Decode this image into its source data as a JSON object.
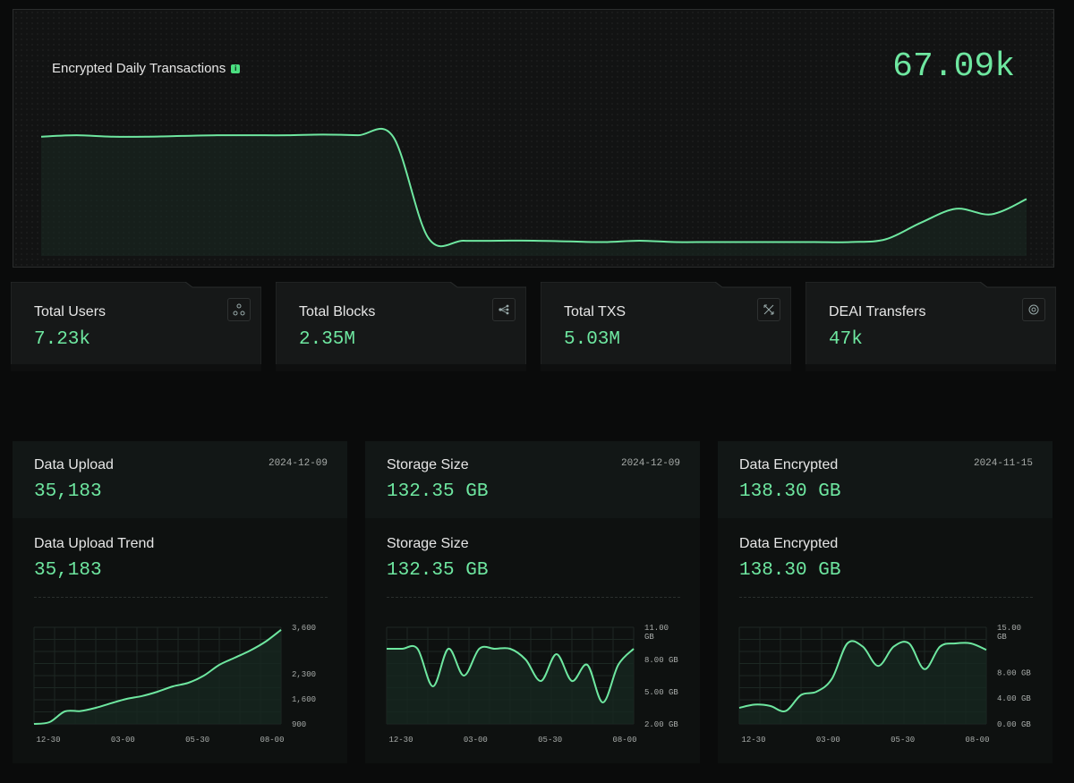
{
  "hero": {
    "title": "Encrypted Daily Transactions",
    "info_icon": "info-icon",
    "value": "67.09k",
    "chart_data": {
      "type": "area",
      "values": [
        0.86,
        0.87,
        0.86,
        0.86,
        0.865,
        0.87,
        0.87,
        0.87,
        0.875,
        0.87,
        0.86,
        0.13,
        0.11,
        0.11,
        0.11,
        0.105,
        0.1,
        0.11,
        0.1,
        0.1,
        0.1,
        0.1,
        0.1,
        0.1,
        0.12,
        0.24,
        0.34,
        0.3,
        0.41
      ],
      "accent": "#6ee7a0"
    }
  },
  "stats": [
    {
      "label": "Total Users",
      "value": "7.23k",
      "icon": "users-network-icon"
    },
    {
      "label": "Total Blocks",
      "value": "2.35M",
      "icon": "blocks-tree-icon"
    },
    {
      "label": "Total TXS",
      "value": "5.03M",
      "icon": "transactions-arrows-icon"
    },
    {
      "label": "DEAI Transfers",
      "value": "47k",
      "icon": "transfer-target-icon"
    }
  ],
  "cards": [
    {
      "label": "Data Upload",
      "date": "2024-12-09",
      "value": "35,183",
      "trend_label": "Data Upload Trend",
      "trend_value": "35,183",
      "chart_data": {
        "type": "area",
        "x_ticks": [
          "12-30",
          "03-00",
          "05-30",
          "08-00"
        ],
        "y_ticks": [
          "3,600",
          "2,300",
          "1,600",
          "900"
        ],
        "y_tick_values": [
          3600,
          2300,
          1600,
          900
        ],
        "ylim": [
          900,
          3600
        ],
        "values": [
          900,
          950,
          1250,
          1260,
          1350,
          1480,
          1600,
          1680,
          1800,
          1950,
          2050,
          2250,
          2550,
          2750,
          2950,
          3200,
          3530
        ]
      }
    },
    {
      "label": "Storage Size",
      "date": "2024-12-09",
      "value": "132.35 GB",
      "trend_label": "Storage Size",
      "trend_value": "132.35 GB",
      "chart_data": {
        "type": "area",
        "x_ticks": [
          "12-30",
          "03-00",
          "05-30",
          "08-00"
        ],
        "y_ticks": [
          "11.00\nGB",
          "8.00 GB",
          "5.00 GB",
          "2.00 GB"
        ],
        "y_tick_values": [
          11,
          8,
          5,
          2
        ],
        "ylim": [
          2,
          11
        ],
        "values": [
          9.0,
          9.0,
          9.0,
          5.5,
          9.0,
          6.5,
          9.0,
          9.0,
          9.0,
          8.0,
          6.0,
          8.5,
          6.0,
          7.5,
          4.0,
          7.5,
          9.0
        ]
      }
    },
    {
      "label": "Data Encrypted",
      "date": "2024-11-15",
      "value": "138.30 GB",
      "trend_label": "Data Encrypted",
      "trend_value": "138.30 GB",
      "chart_data": {
        "type": "area",
        "x_ticks": [
          "12-30",
          "03-00",
          "05-30",
          "08-00"
        ],
        "y_ticks": [
          "15.00\nGB",
          "8.00 GB",
          "4.00 GB",
          "0.00 GB"
        ],
        "y_tick_values": [
          15,
          8,
          4,
          0
        ],
        "ylim": [
          0,
          15
        ],
        "values": [
          2.5,
          3.0,
          2.8,
          2.0,
          4.5,
          5.0,
          7.0,
          12.5,
          12.0,
          9.0,
          12.0,
          12.5,
          8.5,
          12.0,
          12.5,
          12.5,
          11.5
        ]
      }
    }
  ]
}
